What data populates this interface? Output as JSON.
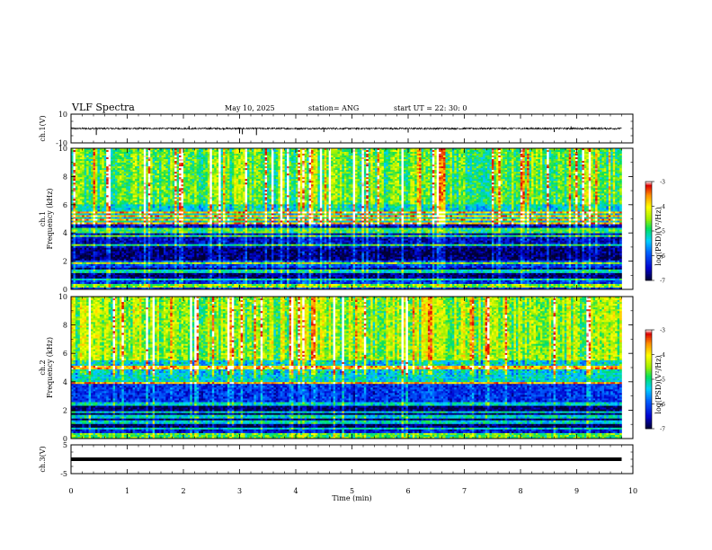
{
  "header": {
    "title": "VLF Spectra",
    "date": "May 10, 2025",
    "station": "station= ANG",
    "start_ut": "start  UT  =   22: 30: 0"
  },
  "colors": {
    "cmap": [
      "#000033",
      "#0000cc",
      "#0060ff",
      "#00d0ff",
      "#00e060",
      "#a0f000",
      "#ffff00",
      "#ff9000",
      "#dd0000",
      "#ffffff"
    ],
    "trace": "#000000"
  },
  "chart_data": [
    {
      "type": "line",
      "panel": "ch1-waveform",
      "ylabel": "ch.1(V)",
      "ylim": [
        -10,
        10
      ],
      "yticks": [
        "10",
        "-10"
      ],
      "baseline": 0,
      "noise_amplitude": 0.6,
      "spikes": [
        {
          "t": 0.45,
          "v": -4.5
        },
        {
          "t": 2.1,
          "v": 1.8
        },
        {
          "t": 3.0,
          "v": -3.5
        },
        {
          "t": 3.05,
          "v": -4.0
        },
        {
          "t": 3.3,
          "v": -4.6
        },
        {
          "t": 4.5,
          "v": -2.5
        },
        {
          "t": 6.0,
          "v": -2.8
        },
        {
          "t": 8.6,
          "v": -2.5
        },
        {
          "t": 8.9,
          "v": 1.5
        }
      ]
    },
    {
      "type": "heatmap",
      "panel": "ch1-spectrogram",
      "ylabel": "Frequency (kHz)",
      "channel_label": "ch.1",
      "ylim": [
        0,
        10
      ],
      "yticks": [
        "0",
        "2",
        "4",
        "6",
        "8",
        "10"
      ],
      "x_range_min": [
        0,
        9.8
      ],
      "colorbar": {
        "label": "log(PSD)(V²/Hz)",
        "range": [
          -7,
          -3
        ],
        "ticks": [
          "-3",
          "-4",
          "-5",
          "-6",
          "-7"
        ]
      },
      "bands": [
        {
          "fmin": 0,
          "fmax": 0.6,
          "level": -6.2
        },
        {
          "fmin": 0.6,
          "fmax": 1.6,
          "level": -6.8
        },
        {
          "fmin": 1.6,
          "fmax": 2.0,
          "level": -6.1
        },
        {
          "fmin": 2.0,
          "fmax": 3.0,
          "level": -6.8
        },
        {
          "fmin": 3.0,
          "fmax": 4.6,
          "level": -6.5
        },
        {
          "fmin": 4.6,
          "fmax": 6.0,
          "level": -5.2
        },
        {
          "fmin": 6.0,
          "fmax": 10.0,
          "level": -4.7
        }
      ]
    },
    {
      "type": "heatmap",
      "panel": "ch2-spectrogram",
      "ylabel": "Frequency (kHz)",
      "channel_label": "ch.2",
      "ylim": [
        0,
        10
      ],
      "yticks": [
        "0",
        "2",
        "4",
        "6",
        "8",
        "10"
      ],
      "x_range_min": [
        0,
        9.8
      ],
      "colorbar": {
        "label": "log(PSD)(V²/Hz)",
        "range": [
          -7,
          -3
        ],
        "ticks": [
          "-3",
          "-4",
          "-5",
          "-6",
          "-7"
        ]
      },
      "bands": [
        {
          "fmin": 0,
          "fmax": 0.6,
          "level": -6.4
        },
        {
          "fmin": 0.6,
          "fmax": 2.6,
          "level": -6.9
        },
        {
          "fmin": 2.6,
          "fmax": 3.8,
          "level": -6.2
        },
        {
          "fmin": 3.8,
          "fmax": 5.5,
          "level": -5.3
        },
        {
          "fmin": 5.5,
          "fmax": 10.0,
          "level": -4.5
        }
      ]
    },
    {
      "type": "line",
      "panel": "ch3-waveform",
      "ylabel": "ch.3(V)",
      "ylim": [
        -5,
        5
      ],
      "yticks": [
        "5",
        "-5"
      ],
      "baseline": 0,
      "x_range_min": [
        0,
        9.8
      ]
    }
  ],
  "x_axis": {
    "label": "Time (min)",
    "range": [
      0,
      10
    ],
    "ticks": [
      "0",
      "1",
      "2",
      "3",
      "4",
      "5",
      "6",
      "7",
      "8",
      "9",
      "10"
    ]
  }
}
